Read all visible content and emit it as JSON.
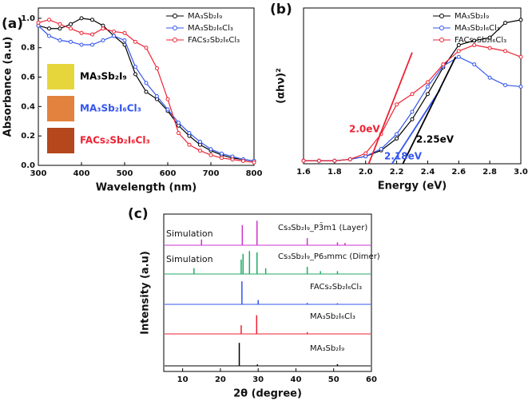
{
  "chart_data": [
    {
      "type": "line",
      "panel_label": "(a)",
      "x_label": "Wavelength (nm)",
      "y_label": "Absorbance (a.u)",
      "x": [
        300,
        325,
        350,
        375,
        400,
        425,
        450,
        475,
        500,
        525,
        550,
        575,
        600,
        625,
        650,
        675,
        700,
        725,
        750,
        775,
        800
      ],
      "series": [
        {
          "name": "MA₃Sb₂I₉",
          "color": "#000000",
          "values": [
            0.95,
            0.93,
            0.93,
            0.96,
            1.0,
            0.99,
            0.95,
            0.88,
            0.82,
            0.62,
            0.5,
            0.45,
            0.37,
            0.27,
            0.2,
            0.14,
            0.1,
            0.07,
            0.05,
            0.04,
            0.03
          ]
        },
        {
          "name": "MA₃Sb₂I₆Cl₃",
          "color": "#3355ee",
          "values": [
            0.95,
            0.88,
            0.85,
            0.84,
            0.82,
            0.82,
            0.85,
            0.88,
            0.85,
            0.67,
            0.56,
            0.47,
            0.38,
            0.29,
            0.22,
            0.16,
            0.11,
            0.08,
            0.06,
            0.04,
            0.03
          ]
        },
        {
          "name": "FACs₂Sb₂I₆Cl₃",
          "color": "#ee2233",
          "values": [
            0.97,
            0.99,
            0.96,
            0.93,
            0.9,
            0.89,
            0.93,
            0.91,
            0.9,
            0.84,
            0.8,
            0.66,
            0.45,
            0.22,
            0.14,
            0.1,
            0.07,
            0.05,
            0.04,
            0.03,
            0.02
          ]
        }
      ],
      "xlim": [
        300,
        800
      ],
      "xticks": [
        300,
        400,
        500,
        600,
        700,
        800
      ],
      "ylim": [
        0,
        1.07
      ],
      "yticks": [
        {
          "value": 0,
          "label": "0.0"
        },
        {
          "value": 0.2,
          "label": "0.2"
        },
        {
          "value": 0.4,
          "label": "0.4"
        },
        {
          "value": 0.6,
          "label": "0.6"
        },
        {
          "value": 0.8,
          "label": "0.8"
        },
        {
          "value": 1,
          "label": "1.0"
        }
      ],
      "insets": [
        {
          "label": "MA₃Sb₂I₉",
          "color": "#e6d63c"
        },
        {
          "label": "MA₃Sb₂I₆Cl₃",
          "color": "#e3823f"
        },
        {
          "label": "FACs₂Sb₂I₆Cl₃",
          "color": "#b4471c"
        }
      ]
    },
    {
      "type": "line",
      "panel_label": "(b)",
      "x_label": "Energy (eV)",
      "y_label": "(αhν)²",
      "x": [
        1.6,
        1.7,
        1.8,
        1.9,
        2.0,
        2.1,
        2.2,
        2.3,
        2.4,
        2.5,
        2.6,
        2.7,
        2.8,
        2.9,
        3.0
      ],
      "series": [
        {
          "name": "MA₃Sb₂I₉",
          "color": "#000000",
          "values": [
            0.02,
            0.02,
            0.02,
            0.03,
            0.05,
            0.09,
            0.17,
            0.3,
            0.47,
            0.65,
            0.8,
            0.83,
            0.85,
            0.95,
            0.97
          ]
        },
        {
          "name": "MA₃Sb₂I₆Cl₃",
          "color": "#3355ee",
          "values": [
            0.02,
            0.02,
            0.02,
            0.03,
            0.05,
            0.1,
            0.2,
            0.35,
            0.52,
            0.66,
            0.72,
            0.67,
            0.58,
            0.53,
            0.52
          ]
        },
        {
          "name": "FACs₂Sb₂I₆Cl₃",
          "color": "#ee2233",
          "values": [
            0.02,
            0.02,
            0.02,
            0.03,
            0.07,
            0.2,
            0.4,
            0.47,
            0.55,
            0.67,
            0.76,
            0.8,
            0.78,
            0.76,
            0.72
          ]
        }
      ],
      "fit_lines": [
        {
          "color": "#ee2233",
          "x": [
            2.02,
            2.3
          ],
          "values": [
            0,
            0.75
          ]
        },
        {
          "color": "#3355ee",
          "x": [
            2.17,
            2.48
          ],
          "values": [
            0,
            0.5
          ]
        },
        {
          "color": "#000000",
          "x": [
            2.24,
            2.58
          ],
          "values": [
            0,
            0.72
          ]
        }
      ],
      "annotations": [
        {
          "text": "2.0eV",
          "color": "#ee2233"
        },
        {
          "text": "2.18eV",
          "color": "#3355ee"
        },
        {
          "text": "2.25eV",
          "color": "#000000"
        }
      ],
      "xlim": [
        1.6,
        3.0
      ],
      "xticks": [
        1.6,
        1.8,
        {
          "value": 2,
          "label": "2.0"
        },
        2.2,
        2.4,
        2.6,
        2.8,
        {
          "value": 3,
          "label": "3.0"
        }
      ],
      "ylim": [
        0,
        1.05
      ]
    },
    {
      "type": "stacked",
      "panel_label": "(c)",
      "x_label": "2θ (degree)",
      "y_label": "Intensity (a.u)",
      "series": [
        {
          "name": "MA₃Sb₂I₉",
          "color": "#000000",
          "x": [
            25,
            29.8,
            51
          ],
          "values": [
            0.8,
            0.05,
            0.06
          ]
        },
        {
          "name": "MA₃Sb₂I₆Cl₃",
          "color": "#ee2233",
          "x": [
            25.5,
            29.6,
            43
          ],
          "values": [
            0.3,
            0.65,
            0.06
          ]
        },
        {
          "name": "FACs₂Sb₂I₆Cl₃",
          "color": "#3355ee",
          "x": [
            25.7,
            30,
            43,
            51
          ],
          "values": [
            0.8,
            0.15,
            0.05,
            0.04
          ]
        },
        {
          "name": "Cs₃Sb₂I₉_P6₃mmc (Dimer)",
          "color": "#22aa66",
          "x": [
            13,
            25.5,
            26,
            27.7,
            29.7,
            32,
            43,
            46.5,
            51
          ],
          "values": [
            0.2,
            0.5,
            0.7,
            0.8,
            0.75,
            0.2,
            0.25,
            0.1,
            0.1
          ]
        },
        {
          "name": "Cs₃Sb₂I₉_P3̄m1 (Layer)",
          "color": "#cc33cc",
          "x": [
            15,
            25.8,
            29.7,
            43,
            51,
            53
          ],
          "values": [
            0.2,
            0.7,
            0.85,
            0.25,
            0.1,
            0.08
          ]
        }
      ],
      "annotations": [
        "Simulation",
        "Simulation"
      ],
      "xlim": [
        5,
        60
      ],
      "xticks": [
        10,
        20,
        30,
        40,
        50,
        60
      ]
    }
  ]
}
